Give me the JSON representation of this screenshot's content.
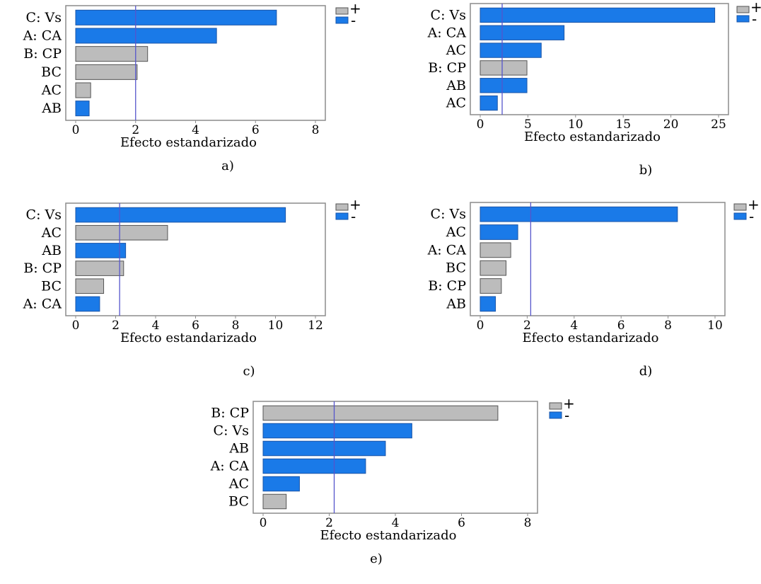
{
  "colors": {
    "positive": "#bcbcbc",
    "negative": "#1a7ae8",
    "reference_line": "#5555cc",
    "frame": "#8c8c8c"
  },
  "legend": {
    "positive": "+",
    "negative": "-"
  },
  "chart_data": [
    {
      "type": "bar",
      "orientation": "horizontal",
      "caption": "a)",
      "xlabel": "Efecto estandarizado",
      "xlim": [
        0,
        8
      ],
      "xticks": [
        0,
        2,
        4,
        6,
        8
      ],
      "reference_line": 2.0,
      "categories": [
        "C: Vs",
        "A: CA",
        "B: CP",
        "BC",
        "AC",
        "AB"
      ],
      "values": [
        6.7,
        4.7,
        2.4,
        2.05,
        0.5,
        0.45
      ],
      "signs": [
        "-",
        "-",
        "+",
        "+",
        "+",
        "-"
      ]
    },
    {
      "type": "bar",
      "orientation": "horizontal",
      "caption": "b)",
      "xlabel": "Efecto estandarizado",
      "xlim": [
        0,
        25
      ],
      "xticks": [
        0,
        5,
        10,
        15,
        20,
        25
      ],
      "reference_line": 2.3,
      "categories": [
        "C: Vs",
        "A: CA",
        "AC",
        "B: CP",
        "AB",
        "AC"
      ],
      "values": [
        24.6,
        8.8,
        6.4,
        4.9,
        4.9,
        1.8
      ],
      "signs": [
        "-",
        "-",
        "-",
        "+",
        "-",
        "-"
      ]
    },
    {
      "type": "bar",
      "orientation": "horizontal",
      "caption": "c)",
      "xlabel": "Efecto estandarizado",
      "xlim": [
        0,
        12
      ],
      "xticks": [
        0,
        2,
        4,
        6,
        8,
        10,
        12
      ],
      "reference_line": 2.2,
      "categories": [
        "C: Vs",
        "AC",
        "AB",
        "B: CP",
        "BC",
        "A: CA"
      ],
      "values": [
        10.5,
        4.6,
        2.5,
        2.4,
        1.4,
        1.2
      ],
      "signs": [
        "-",
        "+",
        "-",
        "+",
        "+",
        "-"
      ]
    },
    {
      "type": "bar",
      "orientation": "horizontal",
      "caption": "d)",
      "xlabel": "Efecto estandarizado",
      "xlim": [
        0,
        10
      ],
      "xticks": [
        0,
        2,
        4,
        6,
        8,
        10
      ],
      "reference_line": 2.15,
      "categories": [
        "C: Vs",
        "AC",
        "A: CA",
        "BC",
        "B: CP",
        "AB"
      ],
      "values": [
        8.4,
        1.6,
        1.3,
        1.1,
        0.9,
        0.65
      ],
      "signs": [
        "-",
        "-",
        "+",
        "+",
        "+",
        "-"
      ]
    },
    {
      "type": "bar",
      "orientation": "horizontal",
      "caption": "e)",
      "xlabel": "Efecto estandarizado",
      "xlim": [
        0,
        8
      ],
      "xticks": [
        0,
        2,
        4,
        6,
        8
      ],
      "reference_line": 2.15,
      "categories": [
        "B: CP",
        "C: Vs",
        "AB",
        "A: CA",
        "AC",
        "BC"
      ],
      "values": [
        7.1,
        4.5,
        3.7,
        3.1,
        1.1,
        0.7
      ],
      "signs": [
        "+",
        "-",
        "-",
        "-",
        "-",
        "+"
      ]
    }
  ]
}
